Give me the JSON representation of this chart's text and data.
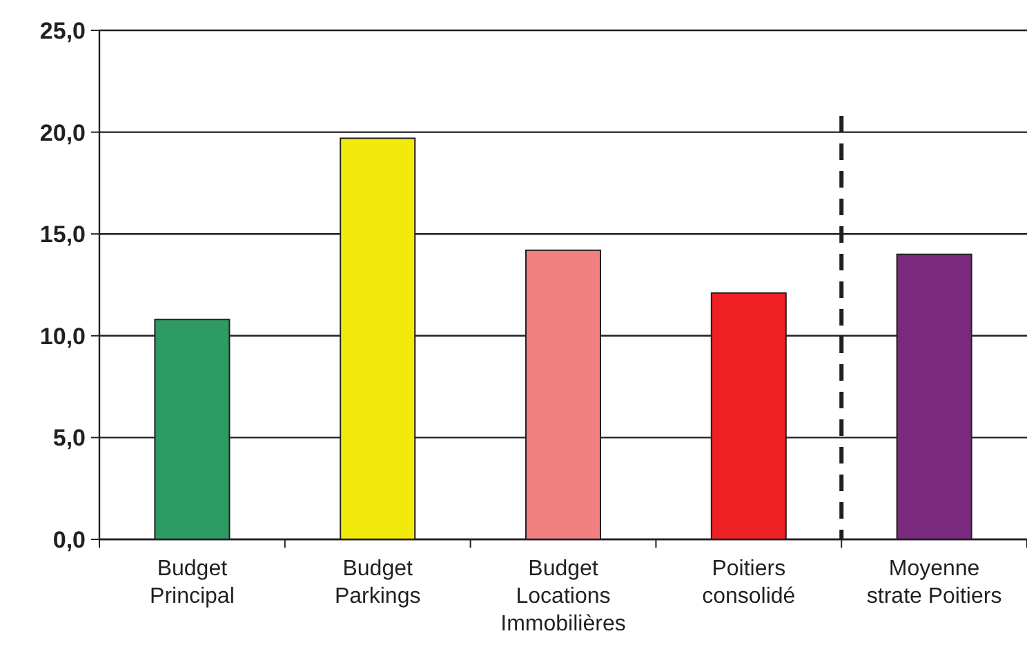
{
  "chart_data": {
    "type": "bar",
    "categories": [
      "Budget\nPrincipal",
      "Budget\nParkings",
      "Budget\nLocations\nImmobilières",
      "Poitiers\nconsolidé",
      "Moyenne\nstrate Poitiers"
    ],
    "values": [
      10.8,
      19.7,
      14.2,
      12.1,
      14.0
    ],
    "colors": [
      "#2e9a64",
      "#f2ea0a",
      "#f38080",
      "#ee2024",
      "#7a2a7e"
    ],
    "ylim": [
      0,
      25
    ],
    "yticks": [
      {
        "value": 0,
        "label": "0,0"
      },
      {
        "value": 5,
        "label": "5,0"
      },
      {
        "value": 10,
        "label": "10,0"
      },
      {
        "value": 15,
        "label": "15,0"
      },
      {
        "value": 20,
        "label": "20,0"
      },
      {
        "value": 25,
        "label": "25,0"
      }
    ],
    "grid": "y"
  }
}
